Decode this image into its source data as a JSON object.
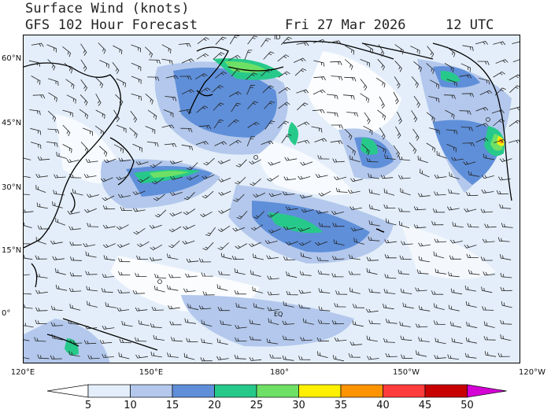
{
  "header": {
    "title": "Surface Wind (knots)",
    "subtitle": "GFS 102 Hour Forecast",
    "date": "Fri 27 Mar 2026",
    "time": "12 UTC"
  },
  "axes": {
    "lat_labels": [
      "60°N",
      "45°N",
      "30°N",
      "15°N",
      "0°"
    ],
    "lon_labels": [
      "120°E",
      "150°E",
      "180°",
      "150°W",
      "120°W"
    ]
  },
  "map_annotations": {
    "equator": "EQ",
    "dateline": "ID"
  },
  "legend": {
    "ticks": [
      "5",
      "10",
      "15",
      "20",
      "25",
      "30",
      "35",
      "40",
      "45",
      "50"
    ],
    "colors": [
      "#ffffff",
      "#e4eefa",
      "#b3c8ec",
      "#5f8fd9",
      "#27c98a",
      "#6fe066",
      "#fff000",
      "#ff9400",
      "#ff3c3c",
      "#c80000",
      "#d400d4"
    ]
  },
  "palette": {
    "ocean_light": "#e4eefa",
    "ocean_mid": "#b3c8ec",
    "ocean_dark": "#5f8fd9",
    "green": "#27c98a",
    "lime": "#6fe066",
    "yellow": "#fff000",
    "orange": "#ff9400"
  }
}
